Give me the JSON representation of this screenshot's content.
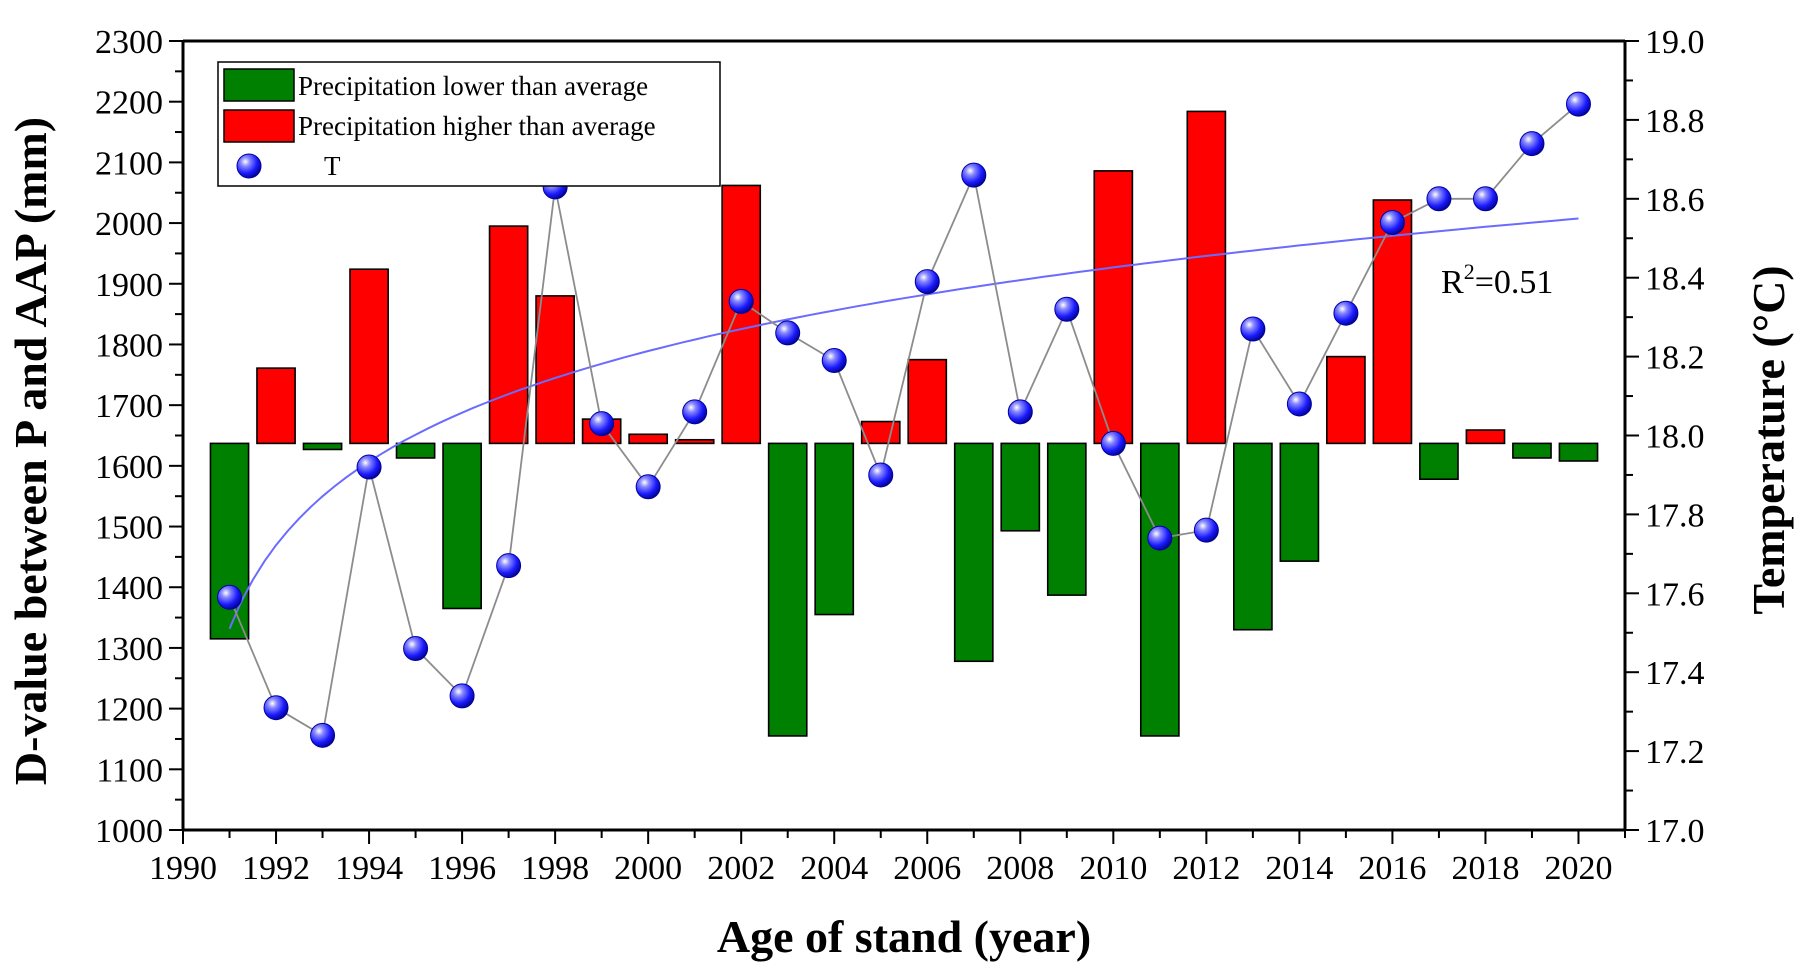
{
  "chart_data": {
    "type": "bar",
    "xlabel": "Age of stand (year)",
    "ylabel_left": "D-value between P and AAP (mm)",
    "ylabel_right": "Temperature (°C)",
    "x_ticks": [
      "1990",
      "1992",
      "1994",
      "1996",
      "1998",
      "2000",
      "2002",
      "2004",
      "2006",
      "2008",
      "2010",
      "2012",
      "2014",
      "2016",
      "2018",
      "2020"
    ],
    "y_left_ticks": [
      "1000",
      "1100",
      "1200",
      "1300",
      "1400",
      "1500",
      "1600",
      "1700",
      "1800",
      "1900",
      "2000",
      "2100",
      "2200",
      "2300"
    ],
    "y_right_ticks": [
      "17.0",
      "17.2",
      "17.4",
      "17.6",
      "17.8",
      "18.0",
      "18.2",
      "18.4",
      "18.6",
      "18.8",
      "19.0"
    ],
    "xlim": [
      1990,
      2021
    ],
    "ylim_left": [
      1000,
      2300
    ],
    "ylim_right": [
      17.0,
      19.0
    ],
    "baseline": 1637,
    "legend_position": "top-left",
    "colors": {
      "lower": "#008000",
      "higher": "#ff0000",
      "temperature_marker": "#1a1aff",
      "temperature_line": "#8c8c8c",
      "trend": "#6b6bff"
    },
    "years": [
      1991,
      1992,
      1993,
      1994,
      1995,
      1996,
      1997,
      1998,
      1999,
      2000,
      2001,
      2002,
      2003,
      2004,
      2005,
      2006,
      2007,
      2008,
      2009,
      2010,
      2011,
      2012,
      2013,
      2014,
      2015,
      2016,
      2017,
      2018,
      2019,
      2020
    ],
    "series": [
      {
        "name": "Precipitation lower than average",
        "type": "bar",
        "axis": "left",
        "values": [
          1315,
          null,
          1627,
          null,
          1613,
          1365,
          null,
          null,
          null,
          null,
          null,
          null,
          1155,
          1355,
          null,
          null,
          1278,
          1493,
          1387,
          null,
          1155,
          null,
          1330,
          1443,
          null,
          null,
          1578,
          null,
          1613,
          1608
        ]
      },
      {
        "name": "Precipitation higher than average",
        "type": "bar",
        "axis": "left",
        "values": [
          null,
          1761,
          null,
          1924,
          null,
          null,
          1995,
          1880,
          1677,
          1652,
          1643,
          2062,
          null,
          null,
          1673,
          1775,
          null,
          null,
          null,
          2086,
          null,
          2184,
          null,
          null,
          1780,
          2038,
          null,
          1659,
          null,
          null
        ]
      },
      {
        "name": "T",
        "type": "scatter-line",
        "axis": "right",
        "values": [
          17.59,
          17.31,
          17.24,
          17.92,
          17.46,
          17.34,
          17.67,
          18.63,
          18.03,
          17.87,
          18.06,
          18.34,
          18.26,
          18.19,
          17.9,
          18.39,
          18.66,
          18.06,
          18.32,
          17.98,
          17.74,
          17.76,
          18.27,
          18.08,
          18.31,
          18.54,
          18.6,
          18.6,
          18.74,
          18.84
        ]
      }
    ],
    "trend": {
      "fit": "log",
      "axis": "right",
      "from": 1991,
      "to": 2020,
      "start_value": 17.51,
      "end_value": 18.55,
      "label_prefix": "R",
      "label_sup": "2",
      "label_suffix": "=0.51"
    }
  }
}
